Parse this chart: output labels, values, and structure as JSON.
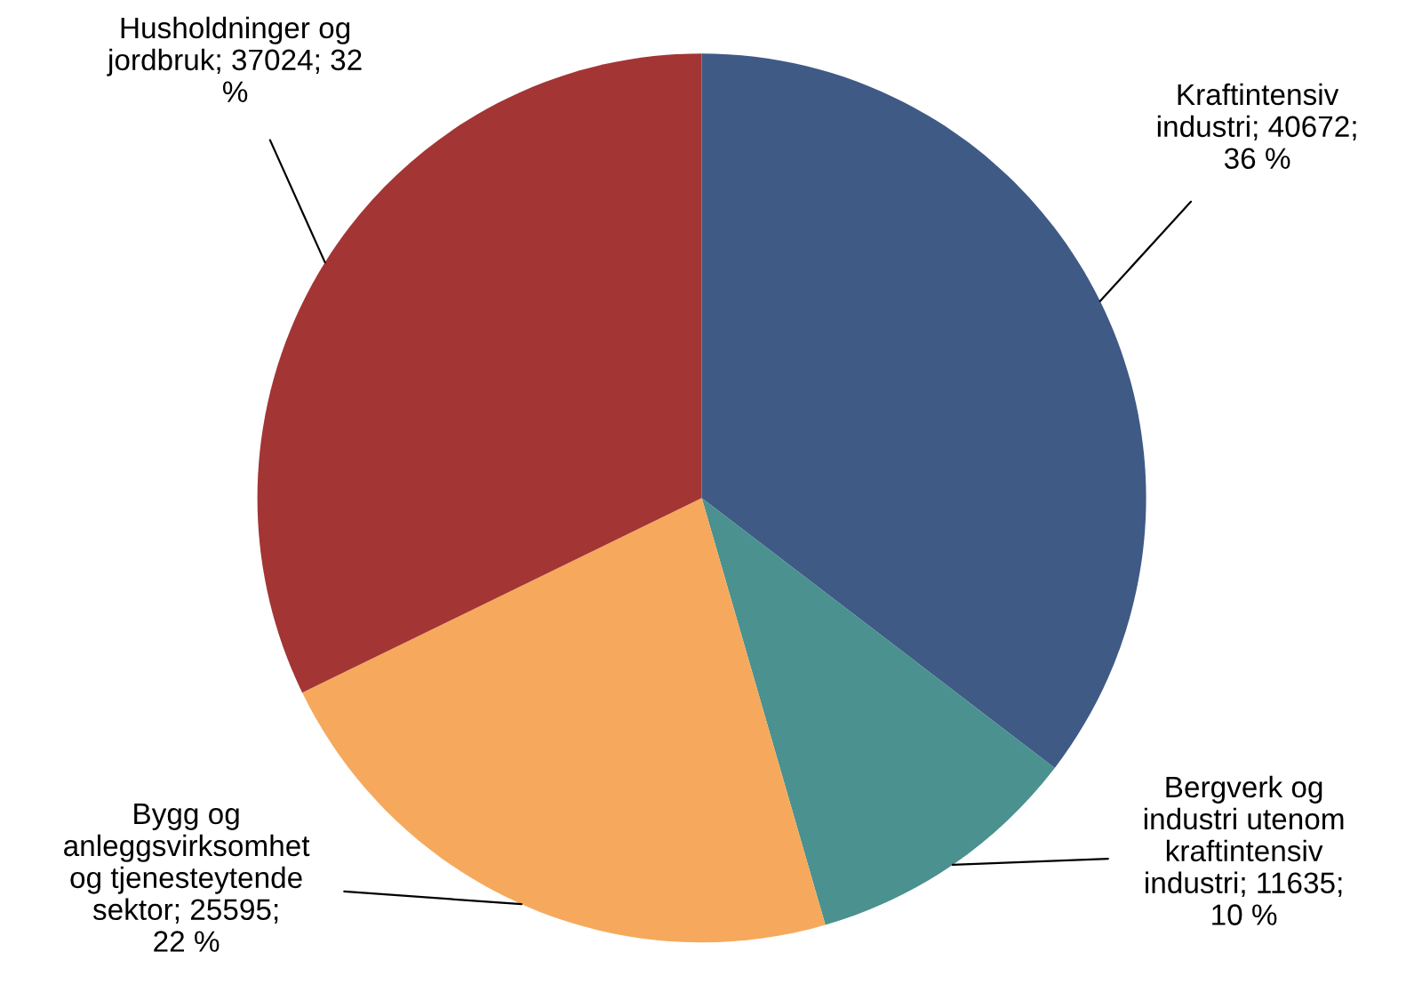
{
  "chart_data": {
    "type": "pie",
    "categories": [
      "Kraftintensiv\nindustri",
      "Bergverk og\nindustri utenom\nkraftintensiv\nindustri",
      "Bygg og\nanleggsvirksomhet\nog tjenesteytende\nsektor",
      "Husholdninger og\njordbruk"
    ],
    "values": [
      40672,
      11635,
      25595,
      37024
    ],
    "colors": [
      "#3f5a85",
      "#4a918f",
      "#f6a95c",
      "#a33535"
    ],
    "value_labels": [
      "40672;\n36 %",
      "11635;\n10 %",
      "25595;\n22 %",
      "37024; 32\n%"
    ],
    "legend": false
  }
}
